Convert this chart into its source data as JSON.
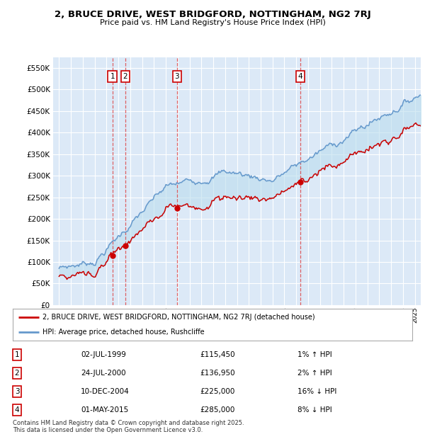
{
  "title": "2, BRUCE DRIVE, WEST BRIDGFORD, NOTTINGHAM, NG2 7RJ",
  "subtitle": "Price paid vs. HM Land Registry's House Price Index (HPI)",
  "ylim": [
    0,
    575000
  ],
  "yticks": [
    0,
    50000,
    100000,
    150000,
    200000,
    250000,
    300000,
    350000,
    400000,
    450000,
    500000,
    550000
  ],
  "ytick_labels": [
    "£0",
    "£50K",
    "£100K",
    "£150K",
    "£200K",
    "£250K",
    "£300K",
    "£350K",
    "£400K",
    "£450K",
    "£500K",
    "£550K"
  ],
  "xlim_start": 1994.5,
  "xlim_end": 2025.5,
  "background_color": "#ffffff",
  "plot_bg_color": "#dce9f7",
  "grid_color": "#c8d8e8",
  "red_line_color": "#cc0000",
  "blue_line_color": "#6699cc",
  "fill_color": "#bbddee",
  "sale_points": [
    {
      "num": 1,
      "year": 1999.5,
      "price": 115450,
      "label": "1"
    },
    {
      "num": 2,
      "year": 2000.58,
      "price": 136950,
      "label": "2"
    },
    {
      "num": 3,
      "year": 2004.94,
      "price": 225000,
      "label": "3"
    },
    {
      "num": 4,
      "year": 2015.33,
      "price": 285000,
      "label": "4"
    }
  ],
  "legend_red_label": "2, BRUCE DRIVE, WEST BRIDGFORD, NOTTINGHAM, NG2 7RJ (detached house)",
  "legend_blue_label": "HPI: Average price, detached house, Rushcliffe",
  "table_rows": [
    {
      "num": "1",
      "date": "02-JUL-1999",
      "price": "£115,450",
      "pct": "1% ↑ HPI"
    },
    {
      "num": "2",
      "date": "24-JUL-2000",
      "price": "£136,950",
      "pct": "2% ↑ HPI"
    },
    {
      "num": "3",
      "date": "10-DEC-2004",
      "price": "£225,000",
      "pct": "16% ↓ HPI"
    },
    {
      "num": "4",
      "date": "01-MAY-2015",
      "price": "£285,000",
      "pct": "8% ↓ HPI"
    }
  ],
  "footer": "Contains HM Land Registry data © Crown copyright and database right 2025.\nThis data is licensed under the Open Government Licence v3.0."
}
